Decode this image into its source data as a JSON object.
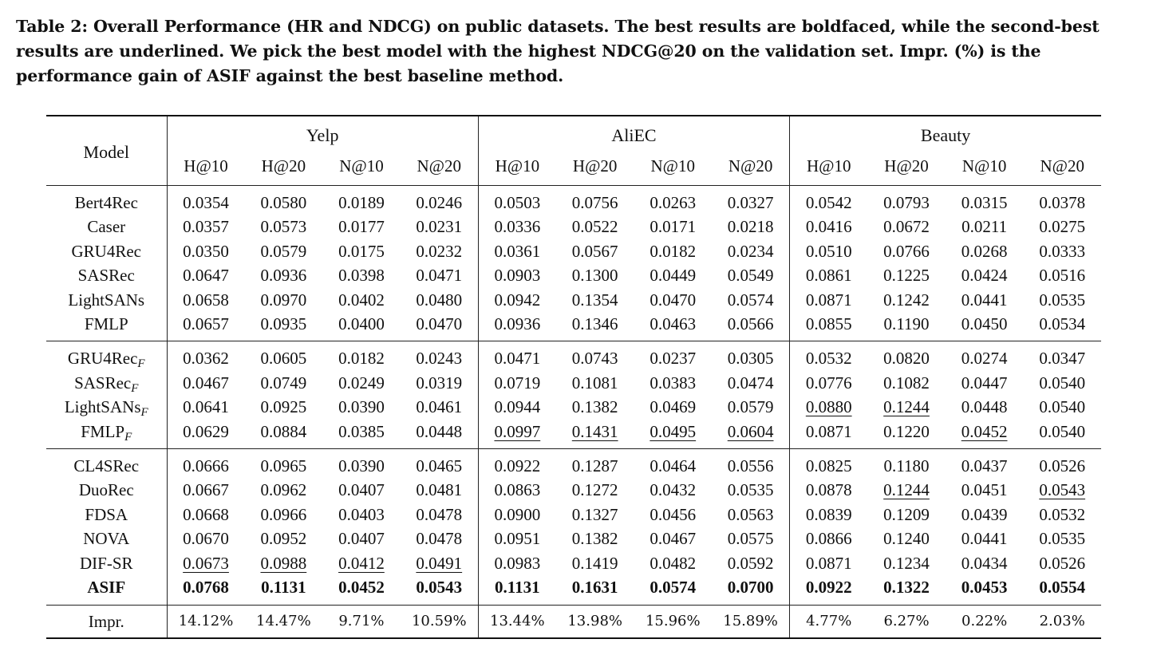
{
  "caption": "Table 2: Overall Performance (HR and NDCG) on public datasets. The best results are boldfaced, while the second-best results are underlined. We pick the best model with the highest NDCG@20 on the validation set. Impr. (%) is the performance gain of ASIF against the best baseline method.",
  "header": {
    "model": "Model",
    "datasets": [
      "Yelp",
      "AliEC",
      "Beauty"
    ],
    "metrics": [
      "H@10",
      "H@20",
      "N@10",
      "N@20"
    ]
  },
  "groups": [
    [
      {
        "name": "Bert4Rec",
        "sub": "",
        "values": [
          "0.0354",
          "0.0580",
          "0.0189",
          "0.0246",
          "0.0503",
          "0.0756",
          "0.0263",
          "0.0327",
          "0.0542",
          "0.0793",
          "0.0315",
          "0.0378"
        ],
        "underline": []
      },
      {
        "name": "Caser",
        "sub": "",
        "values": [
          "0.0357",
          "0.0573",
          "0.0177",
          "0.0231",
          "0.0336",
          "0.0522",
          "0.0171",
          "0.0218",
          "0.0416",
          "0.0672",
          "0.0211",
          "0.0275"
        ],
        "underline": []
      },
      {
        "name": "GRU4Rec",
        "sub": "",
        "values": [
          "0.0350",
          "0.0579",
          "0.0175",
          "0.0232",
          "0.0361",
          "0.0567",
          "0.0182",
          "0.0234",
          "0.0510",
          "0.0766",
          "0.0268",
          "0.0333"
        ],
        "underline": []
      },
      {
        "name": "SASRec",
        "sub": "",
        "values": [
          "0.0647",
          "0.0936",
          "0.0398",
          "0.0471",
          "0.0903",
          "0.1300",
          "0.0449",
          "0.0549",
          "0.0861",
          "0.1225",
          "0.0424",
          "0.0516"
        ],
        "underline": []
      },
      {
        "name": "LightSANs",
        "sub": "",
        "values": [
          "0.0658",
          "0.0970",
          "0.0402",
          "0.0480",
          "0.0942",
          "0.1354",
          "0.0470",
          "0.0574",
          "0.0871",
          "0.1242",
          "0.0441",
          "0.0535"
        ],
        "underline": []
      },
      {
        "name": "FMLP",
        "sub": "",
        "values": [
          "0.0657",
          "0.0935",
          "0.0400",
          "0.0470",
          "0.0936",
          "0.1346",
          "0.0463",
          "0.0566",
          "0.0855",
          "0.1190",
          "0.0450",
          "0.0534"
        ],
        "underline": []
      }
    ],
    [
      {
        "name": "GRU4Rec",
        "sub": "F",
        "values": [
          "0.0362",
          "0.0605",
          "0.0182",
          "0.0243",
          "0.0471",
          "0.0743",
          "0.0237",
          "0.0305",
          "0.0532",
          "0.0820",
          "0.0274",
          "0.0347"
        ],
        "underline": []
      },
      {
        "name": "SASRec",
        "sub": "F",
        "values": [
          "0.0467",
          "0.0749",
          "0.0249",
          "0.0319",
          "0.0719",
          "0.1081",
          "0.0383",
          "0.0474",
          "0.0776",
          "0.1082",
          "0.0447",
          "0.0540"
        ],
        "underline": []
      },
      {
        "name": "LightSANs",
        "sub": "F",
        "values": [
          "0.0641",
          "0.0925",
          "0.0390",
          "0.0461",
          "0.0944",
          "0.1382",
          "0.0469",
          "0.0579",
          "0.0880",
          "0.1244",
          "0.0448",
          "0.0540"
        ],
        "underline": [
          8,
          9
        ]
      },
      {
        "name": "FMLP",
        "sub": "F",
        "values": [
          "0.0629",
          "0.0884",
          "0.0385",
          "0.0448",
          "0.0997",
          "0.1431",
          "0.0495",
          "0.0604",
          "0.0871",
          "0.1220",
          "0.0452",
          "0.0540"
        ],
        "underline": [
          4,
          5,
          6,
          7,
          10
        ]
      }
    ],
    [
      {
        "name": "CL4SRec",
        "sub": "",
        "values": [
          "0.0666",
          "0.0965",
          "0.0390",
          "0.0465",
          "0.0922",
          "0.1287",
          "0.0464",
          "0.0556",
          "0.0825",
          "0.1180",
          "0.0437",
          "0.0526"
        ],
        "underline": []
      },
      {
        "name": "DuoRec",
        "sub": "",
        "values": [
          "0.0667",
          "0.0962",
          "0.0407",
          "0.0481",
          "0.0863",
          "0.1272",
          "0.0432",
          "0.0535",
          "0.0878",
          "0.1244",
          "0.0451",
          "0.0543"
        ],
        "underline": [
          9,
          11
        ]
      },
      {
        "name": "FDSA",
        "sub": "",
        "values": [
          "0.0668",
          "0.0966",
          "0.0403",
          "0.0478",
          "0.0900",
          "0.1327",
          "0.0456",
          "0.0563",
          "0.0839",
          "0.1209",
          "0.0439",
          "0.0532"
        ],
        "underline": []
      },
      {
        "name": "NOVA",
        "sub": "",
        "values": [
          "0.0670",
          "0.0952",
          "0.0407",
          "0.0478",
          "0.0951",
          "0.1382",
          "0.0467",
          "0.0575",
          "0.0866",
          "0.1240",
          "0.0441",
          "0.0535"
        ],
        "underline": []
      },
      {
        "name": "DIF-SR",
        "sub": "",
        "values": [
          "0.0673",
          "0.0988",
          "0.0412",
          "0.0491",
          "0.0983",
          "0.1419",
          "0.0482",
          "0.0592",
          "0.0871",
          "0.1234",
          "0.0434",
          "0.0526"
        ],
        "underline": [
          0,
          1,
          2,
          3
        ]
      },
      {
        "name": "ASIF",
        "sub": "",
        "bold": true,
        "values": [
          "0.0768",
          "0.1131",
          "0.0452",
          "0.0543",
          "0.1131",
          "0.1631",
          "0.0574",
          "0.0700",
          "0.0922",
          "0.1322",
          "0.0453",
          "0.0554"
        ],
        "underline": []
      }
    ]
  ],
  "impr": {
    "name": "Impr.",
    "values": [
      "14.12%",
      "14.47%",
      "9.71%",
      "10.59%",
      "13.44%",
      "13.98%",
      "15.96%",
      "15.89%",
      "4.77%",
      "6.27%",
      "0.22%",
      "2.03%"
    ]
  }
}
